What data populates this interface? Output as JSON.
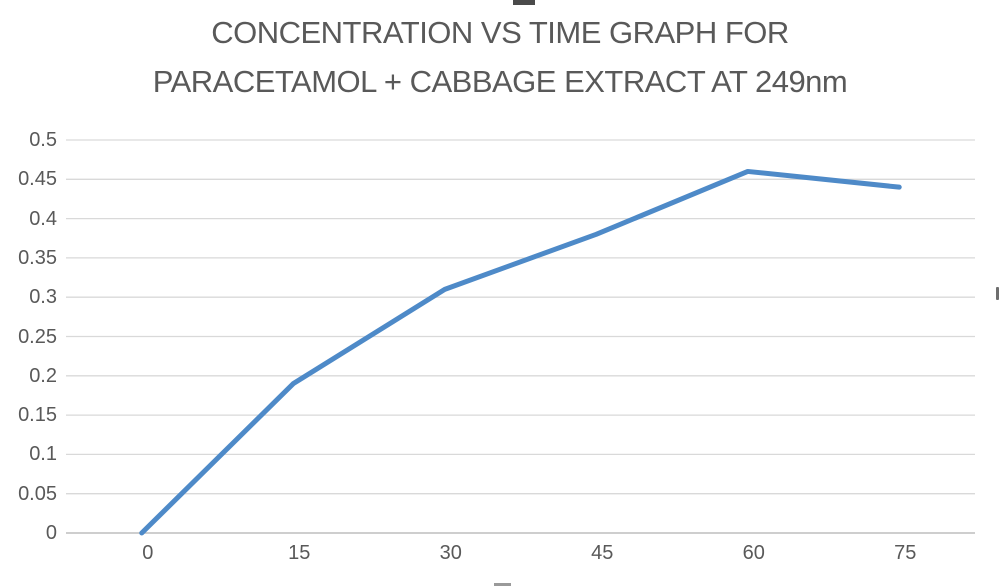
{
  "chart_data": {
    "type": "line",
    "title": "CONCENTRATION VS TIME GRAPH FOR PARACETAMOL + CABBAGE EXTRACT AT 249nm",
    "title_lines": [
      "CONCENTRATION VS TIME GRAPH FOR",
      "PARACETAMOL + CABBAGE EXTRACT AT 249nm"
    ],
    "x": [
      0,
      15,
      30,
      45,
      60,
      75
    ],
    "values": [
      0,
      0.19,
      0.31,
      0.38,
      0.46,
      0.44
    ],
    "xlabel": "",
    "ylabel": "",
    "ylim": [
      0,
      0.5
    ],
    "ytick_step": 0.05,
    "yticks": [
      "0.5",
      "0.45",
      "0.4",
      "0.35",
      "0.3",
      "0.25",
      "0.2",
      "0.15",
      "0.1",
      "0.05",
      "0"
    ],
    "xticks": [
      "0",
      "15",
      "30",
      "45",
      "60",
      "75"
    ],
    "grid": true,
    "gridlines": "horizontal-only",
    "legend": false,
    "line_color": "#4e8ac8",
    "gridline_color": "#d9d9d9",
    "axis_line_color": "#bdbdbd",
    "text_color": "#595959"
  },
  "fragments": {
    "left_edge_glyph": ")"
  }
}
